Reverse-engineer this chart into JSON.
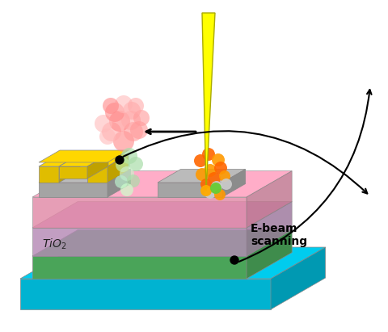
{
  "figure_size": [
    4.8,
    4.11
  ],
  "dpi": 100,
  "background_color": "#ffffff",
  "colors": {
    "cyan": "#00CCEE",
    "green": "#55BB66",
    "purple": "#CC99CC",
    "pink": "#FF99BB",
    "gray": "#AAAAAA",
    "gold": "#FFD700",
    "gold_dark": "#E6B800",
    "ebeam": "#FFFF00",
    "ebeam_tip": "#CCCC00"
  },
  "text_ebeam": "E-beam\nscanning",
  "text_tio2": "TiO₂"
}
